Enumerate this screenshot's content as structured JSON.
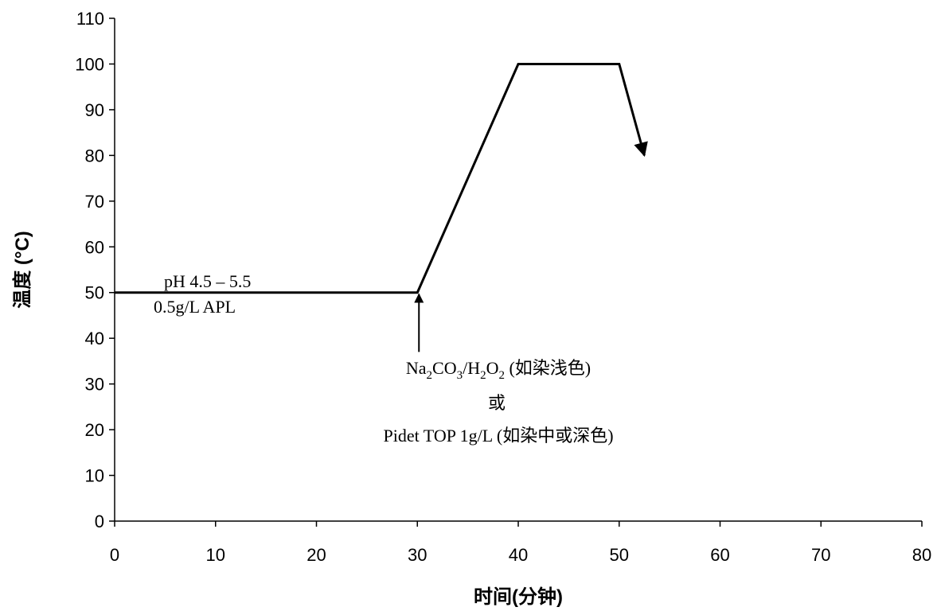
{
  "chart_data": {
    "type": "line",
    "xlabel": "时间(分钟)",
    "ylabel": "温度 (°C)",
    "xlim": [
      0,
      80
    ],
    "ylim": [
      0,
      110
    ],
    "xticks": [
      0,
      10,
      20,
      30,
      40,
      50,
      60,
      70,
      80
    ],
    "yticks": [
      0,
      10,
      20,
      30,
      40,
      50,
      60,
      70,
      80,
      90,
      100,
      110
    ],
    "grid": false,
    "legend": "none",
    "series": [
      {
        "x": [
          0,
          30,
          40,
          50,
          52.5
        ],
        "y": [
          50,
          50,
          100,
          100,
          80
        ],
        "color": "#000000",
        "end_arrow": true
      }
    ],
    "annotations": {
      "condition_line1": "pH 4.5 – 5.5",
      "condition_line2": "0.5g/L APL",
      "addition_arrow": {
        "x": 30,
        "y_from": 37,
        "y_to": 50
      },
      "addition_text_line1": {
        "na": "Na",
        "na_sub": "2",
        "co": "CO",
        "co_sub": "3",
        "slash_h": "/H",
        "h_sub": "2",
        "o": "O",
        "o_sub": "2",
        "rest": " (如染浅色)"
      },
      "addition_text_line2": "或",
      "addition_text_line3": "Pidet TOP 1g/L (如染中或深色)"
    }
  }
}
